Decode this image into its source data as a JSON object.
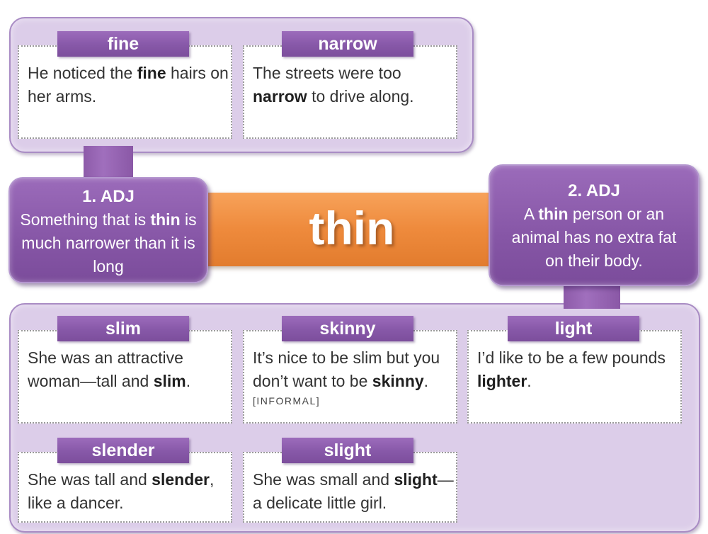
{
  "headword": "thin",
  "senses": [
    {
      "number": "1. ADJ",
      "definition_parts": [
        "Something that is ",
        "thin",
        " is much narrower than it is long"
      ]
    },
    {
      "number": "2. ADJ",
      "definition_parts": [
        "A ",
        "thin",
        " person or an animal has no extra fat on their body."
      ]
    }
  ],
  "sense1_synonyms": [
    {
      "word": "fine",
      "example_parts": [
        "He noticed the ",
        "fine",
        " hairs on her arms."
      ]
    },
    {
      "word": "narrow",
      "example_parts": [
        "The streets were too ",
        "narrow",
        " to drive along."
      ]
    }
  ],
  "sense2_synonyms": [
    {
      "word": "slim",
      "example_parts": [
        "She was an attractive woman—tall and ",
        "slim",
        "."
      ]
    },
    {
      "word": "skinny",
      "example_parts": [
        "It’s nice to be slim but you don’t want to be ",
        "skinny",
        "."
      ],
      "note": "[INFORMAL]"
    },
    {
      "word": "light",
      "example_parts": [
        "I’d like to be a few pounds ",
        "lighter",
        "."
      ]
    },
    {
      "word": "slender",
      "example_parts": [
        "She was tall and ",
        "slender",
        ", like a dancer."
      ]
    },
    {
      "word": "slight",
      "example_parts": [
        "She was small and ",
        "slight",
        "—a delicate little girl."
      ]
    }
  ],
  "colors": {
    "purple_dark": "#8758a8",
    "purple_panel": "#dccde9",
    "orange_bar": "#ee8a3c"
  }
}
